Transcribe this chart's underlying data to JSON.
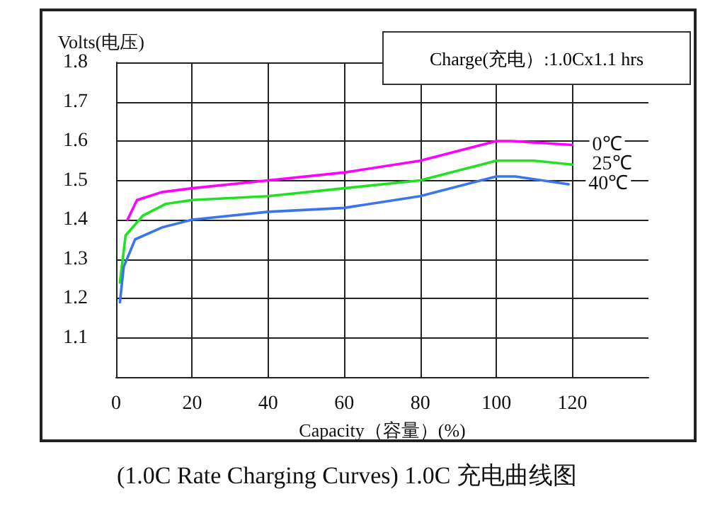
{
  "chart_data": {
    "type": "line",
    "title": "(1.0C Rate Charging Curves) 1.0C 充电曲线图",
    "xlabel": "Capacity（容量）(%)",
    "ylabel": "Volts(电压)",
    "annotations": [
      "Charge(充电）:1.0Cx1.1 hrs"
    ],
    "series": [
      {
        "name": "0℃",
        "color": "#ff00ff",
        "x": [
          3,
          5.5,
          12,
          20,
          40,
          60,
          80,
          100,
          104,
          120
        ],
        "values": [
          1.4,
          1.45,
          1.47,
          1.48,
          1.5,
          1.52,
          1.55,
          1.6,
          1.6,
          1.59
        ]
      },
      {
        "name": "25℃",
        "color": "#22e022",
        "x": [
          1,
          2.5,
          7,
          13,
          20,
          40,
          60,
          80,
          100,
          110,
          120
        ],
        "values": [
          1.24,
          1.36,
          1.41,
          1.44,
          1.45,
          1.46,
          1.48,
          1.5,
          1.55,
          1.55,
          1.54
        ]
      },
      {
        "name": "40℃",
        "color": "#3a75f0",
        "x": [
          1,
          2,
          5,
          12,
          20,
          40,
          60,
          80,
          100,
          105,
          119
        ],
        "values": [
          1.19,
          1.28,
          1.35,
          1.38,
          1.4,
          1.42,
          1.43,
          1.46,
          1.51,
          1.51,
          1.49
        ]
      }
    ],
    "xlim": [
      0,
      140
    ],
    "xticks": [
      0,
      20,
      40,
      60,
      80,
      100,
      120
    ],
    "ylim": [
      1.0,
      1.8
    ],
    "yticks": [
      1.1,
      1.2,
      1.3,
      1.4,
      1.5,
      1.6,
      1.7,
      1.8
    ],
    "grid": true,
    "legend": false,
    "marker": "none",
    "line_style": "solid"
  }
}
